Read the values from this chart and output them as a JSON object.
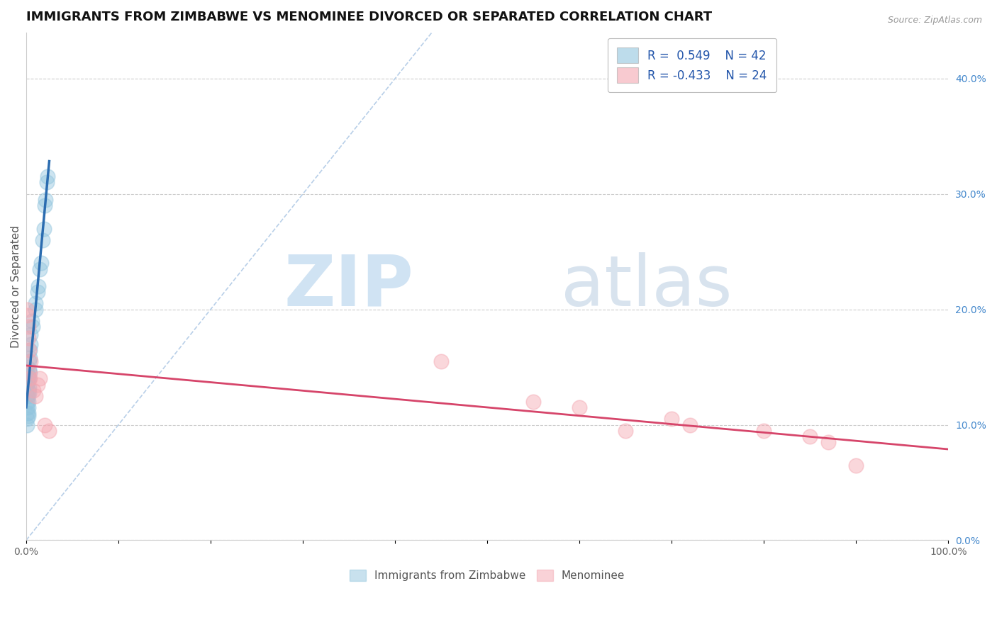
{
  "title": "IMMIGRANTS FROM ZIMBABWE VS MENOMINEE DIVORCED OR SEPARATED CORRELATION CHART",
  "source": "Source: ZipAtlas.com",
  "ylabel": "Divorced or Separated",
  "right_ytick_values": [
    0.0,
    0.1,
    0.2,
    0.3,
    0.4
  ],
  "xlim": [
    0.0,
    1.0
  ],
  "ylim": [
    0.0,
    0.44
  ],
  "legend_r1": "R =  0.549",
  "legend_n1": "N = 42",
  "legend_r2": "R = -0.433",
  "legend_n2": "N = 24",
  "blue_color": "#92c5de",
  "pink_color": "#f4a7b1",
  "blue_line_color": "#2b6cb0",
  "pink_line_color": "#d6456a",
  "diag_line_color": "#b8cfe8",
  "grid_color": "#cccccc",
  "background": "#ffffff",
  "blue_scatter_x": [
    0.001,
    0.001,
    0.001,
    0.001,
    0.001,
    0.001,
    0.001,
    0.001,
    0.001,
    0.001,
    0.002,
    0.002,
    0.002,
    0.002,
    0.002,
    0.002,
    0.002,
    0.002,
    0.003,
    0.003,
    0.003,
    0.003,
    0.003,
    0.004,
    0.004,
    0.004,
    0.005,
    0.005,
    0.006,
    0.007,
    0.01,
    0.01,
    0.012,
    0.013,
    0.015,
    0.016,
    0.018,
    0.019,
    0.02,
    0.021,
    0.022,
    0.023
  ],
  "blue_scatter_y": [
    0.135,
    0.14,
    0.145,
    0.15,
    0.125,
    0.12,
    0.115,
    0.11,
    0.105,
    0.1,
    0.138,
    0.142,
    0.13,
    0.125,
    0.12,
    0.115,
    0.11,
    0.108,
    0.155,
    0.148,
    0.14,
    0.132,
    0.128,
    0.165,
    0.158,
    0.145,
    0.178,
    0.17,
    0.19,
    0.185,
    0.205,
    0.2,
    0.215,
    0.22,
    0.235,
    0.24,
    0.26,
    0.27,
    0.29,
    0.295,
    0.31,
    0.315
  ],
  "pink_scatter_x": [
    0.001,
    0.001,
    0.002,
    0.002,
    0.003,
    0.003,
    0.004,
    0.005,
    0.008,
    0.01,
    0.012,
    0.015,
    0.02,
    0.025,
    0.45,
    0.55,
    0.6,
    0.65,
    0.7,
    0.72,
    0.8,
    0.85,
    0.87,
    0.9
  ],
  "pink_scatter_y": [
    0.2,
    0.195,
    0.185,
    0.175,
    0.165,
    0.145,
    0.14,
    0.155,
    0.13,
    0.125,
    0.135,
    0.14,
    0.1,
    0.095,
    0.155,
    0.12,
    0.115,
    0.095,
    0.105,
    0.1,
    0.095,
    0.09,
    0.085,
    0.065
  ],
  "title_fontsize": 13,
  "axis_label_fontsize": 11,
  "tick_fontsize": 10,
  "legend_fontsize": 12
}
